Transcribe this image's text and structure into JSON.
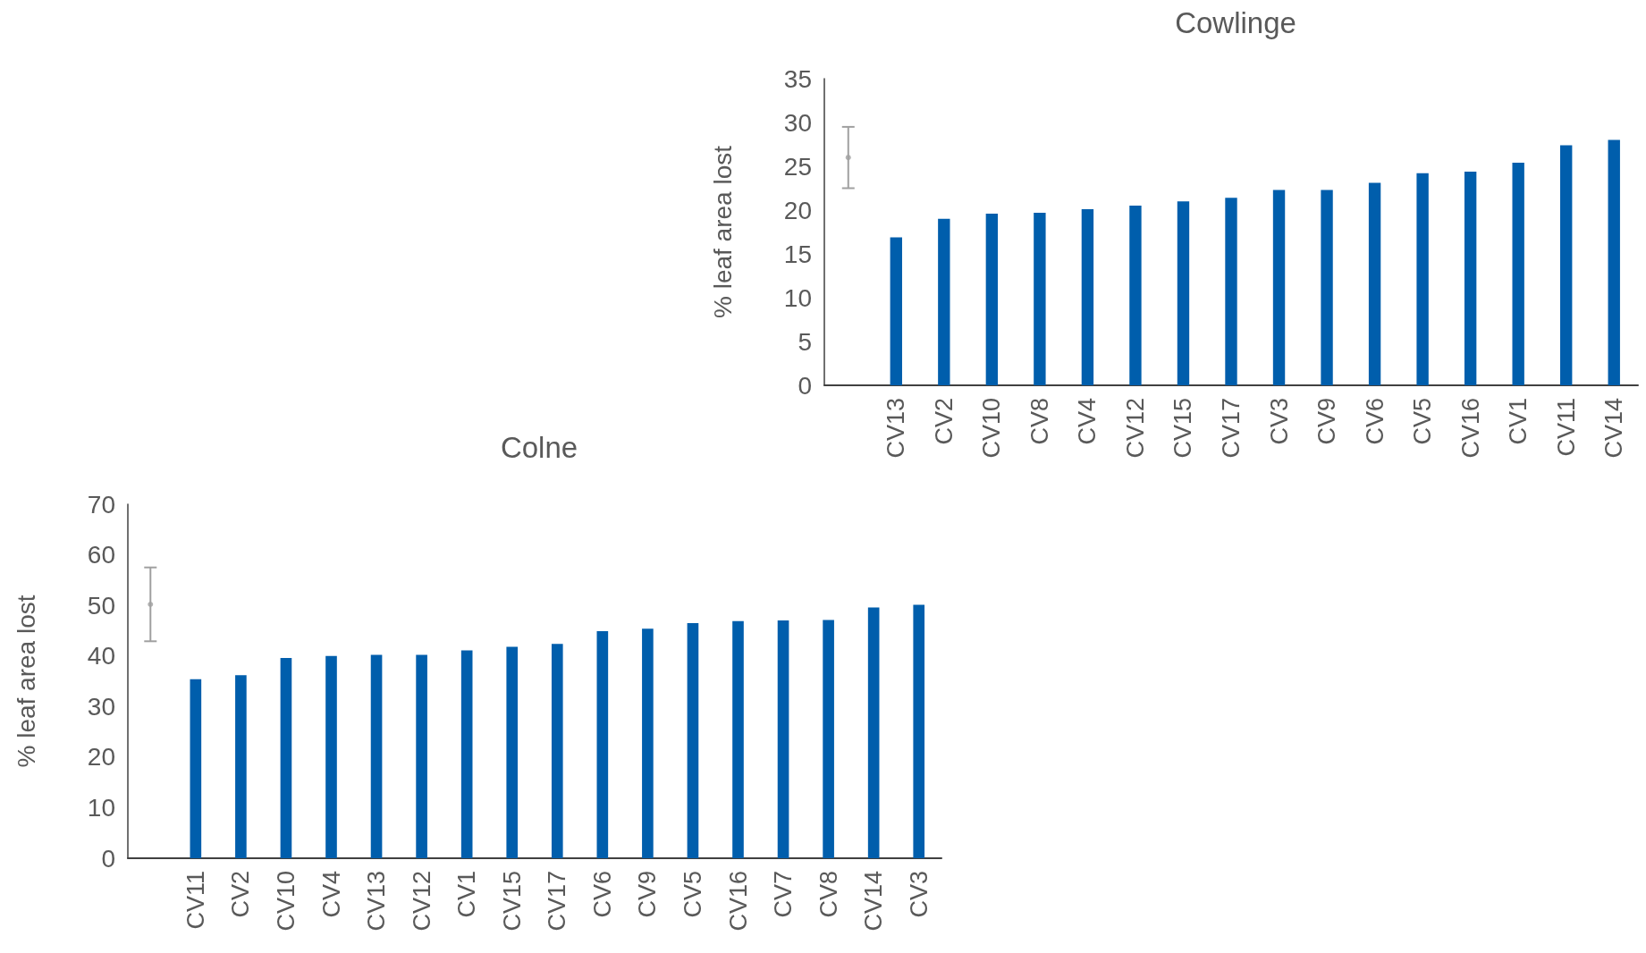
{
  "chart_data": [
    {
      "type": "bar",
      "title": "Cowlinge",
      "ylabel": "% leaf area lost",
      "categories": [
        null,
        "CV13",
        "CV2",
        "CV10",
        "CV8",
        "CV4",
        "CV12",
        "CV15",
        "CV17",
        "CV3",
        "CV9",
        "CV6",
        "CV5",
        "CV16",
        "CV1",
        "CV11",
        "CV14"
      ],
      "series": [
        {
          "color": "#005eac",
          "values": [
            null,
            16.9,
            19.0,
            19.6,
            19.7,
            20.1,
            20.5,
            21.0,
            21.4,
            22.3,
            22.3,
            23.1,
            24.2,
            24.4,
            25.4,
            27.4,
            28.0
          ]
        },
        {
          "type": "scatter",
          "color": "#a0a0a0",
          "values": [
            26,
            null,
            null,
            null,
            null,
            null,
            null,
            null,
            null,
            null,
            null,
            null,
            null,
            null,
            null,
            null,
            null
          ],
          "errors": [
            3.5,
            null,
            null,
            null,
            null,
            null,
            null,
            null,
            null,
            null,
            null,
            null,
            null,
            null,
            null,
            null,
            null
          ]
        }
      ],
      "ylim": [
        0,
        35
      ],
      "yticks": [
        0,
        5,
        10,
        15,
        20,
        25,
        30,
        35
      ],
      "grid": false
    },
    {
      "type": "bar",
      "title": "Colne",
      "ylabel": "% leaf area lost",
      "categories": [
        null,
        "CV11",
        "CV2",
        "CV10",
        "CV4",
        "CV13",
        "CV12",
        "CV1",
        "CV15",
        "CV17",
        "CV6",
        "CV9",
        "CV5",
        "CV16",
        "CV7",
        "CV8",
        "CV14",
        "CV3"
      ],
      "series": [
        {
          "color": "#005eac",
          "values": [
            null,
            35.4,
            36.2,
            39.6,
            40.0,
            40.2,
            40.2,
            41.1,
            41.8,
            42.4,
            44.9,
            45.4,
            46.5,
            46.9,
            47.0,
            47.1,
            49.6,
            50.1
          ]
        },
        {
          "type": "scatter",
          "color": "#a0a0a0",
          "values": [
            50.2,
            null,
            null,
            null,
            null,
            null,
            null,
            null,
            null,
            null,
            null,
            null,
            null,
            null,
            null,
            null,
            null,
            null
          ],
          "errors": [
            7.3,
            null,
            null,
            null,
            null,
            null,
            null,
            null,
            null,
            null,
            null,
            null,
            null,
            null,
            null,
            null,
            null,
            null
          ]
        }
      ],
      "ylim": [
        0,
        70
      ],
      "yticks": [
        0,
        10,
        20,
        30,
        40,
        50,
        60,
        70
      ],
      "grid": false
    }
  ]
}
